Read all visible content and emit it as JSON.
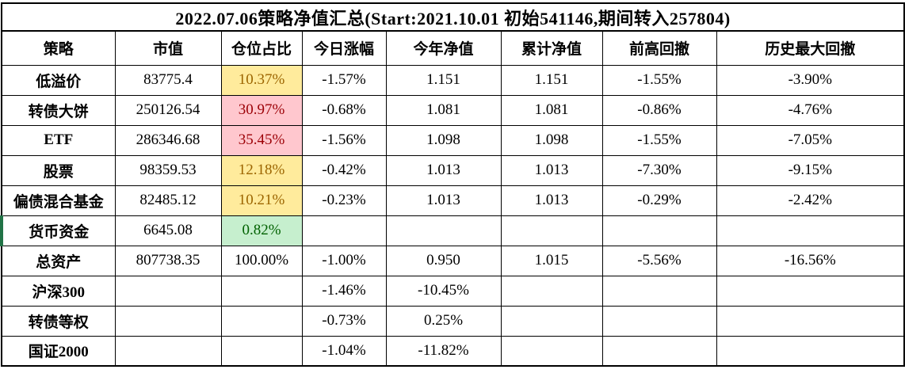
{
  "title": "2022.07.06策略净值汇总(Start:2021.10.01 初始541146,期间转入257804)",
  "colors": {
    "neutral_bg": "#FFEB9C",
    "neutral_text": "#9C6500",
    "bad_bg": "#FFC7CE",
    "bad_text": "#9C0006",
    "good_bg": "#C6EFCE",
    "good_text": "#006100",
    "selection_edge_green": "#217346",
    "grid_line": "#000000"
  },
  "table": {
    "headers": [
      "策略",
      "市值",
      "仓位占比",
      "今日涨幅",
      "今年净值",
      "累计净值",
      "前高回撤",
      "历史最大回撤"
    ],
    "rows": [
      {
        "label": "低溢价",
        "market_value": "83775.4",
        "position": "10.37%",
        "position_style": "neutral",
        "today_change": "-1.57%",
        "ytd_nav": "1.151",
        "cum_nav": "1.151",
        "drawdown_prev_high": "-1.55%",
        "max_drawdown_hist": "-3.90%",
        "green_left": false
      },
      {
        "label": "转债大饼",
        "market_value": "250126.54",
        "position": "30.97%",
        "position_style": "bad",
        "today_change": "-0.68%",
        "ytd_nav": "1.081",
        "cum_nav": "1.081",
        "drawdown_prev_high": "-0.86%",
        "max_drawdown_hist": "-4.76%",
        "green_left": false
      },
      {
        "label": "ETF",
        "market_value": "286346.68",
        "position": "35.45%",
        "position_style": "bad",
        "today_change": "-1.56%",
        "ytd_nav": "1.098",
        "cum_nav": "1.098",
        "drawdown_prev_high": "-1.55%",
        "max_drawdown_hist": "-7.05%",
        "green_left": false
      },
      {
        "label": "股票",
        "market_value": "98359.53",
        "position": "12.18%",
        "position_style": "neutral",
        "today_change": "-0.42%",
        "ytd_nav": "1.013",
        "cum_nav": "1.013",
        "drawdown_prev_high": "-7.30%",
        "max_drawdown_hist": "-9.15%",
        "green_left": false
      },
      {
        "label": "偏债混合基金",
        "market_value": "82485.12",
        "position": "10.21%",
        "position_style": "neutral",
        "today_change": "-0.23%",
        "ytd_nav": "1.013",
        "cum_nav": "1.013",
        "drawdown_prev_high": "-0.29%",
        "max_drawdown_hist": "-2.42%",
        "green_left": false
      },
      {
        "label": "货币资金",
        "market_value": "6645.08",
        "position": "0.82%",
        "position_style": "good",
        "today_change": "",
        "ytd_nav": "",
        "cum_nav": "",
        "drawdown_prev_high": "",
        "max_drawdown_hist": "",
        "green_left": true
      },
      {
        "label": "总资产",
        "market_value": "807738.35",
        "position": "100.00%",
        "position_style": "",
        "today_change": "-1.00%",
        "ytd_nav": "0.950",
        "cum_nav": "1.015",
        "drawdown_prev_high": "-5.56%",
        "max_drawdown_hist": "-16.56%",
        "green_left": false
      },
      {
        "label": "沪深300",
        "market_value": "",
        "position": "",
        "position_style": "",
        "today_change": "-1.46%",
        "ytd_nav": "-10.45%",
        "cum_nav": "",
        "drawdown_prev_high": "",
        "max_drawdown_hist": "",
        "green_left": false
      },
      {
        "label": "转债等权",
        "market_value": "",
        "position": "",
        "position_style": "",
        "today_change": "-0.73%",
        "ytd_nav": "0.25%",
        "cum_nav": "",
        "drawdown_prev_high": "",
        "max_drawdown_hist": "",
        "green_left": false
      },
      {
        "label": "国证2000",
        "market_value": "",
        "position": "",
        "position_style": "",
        "today_change": "-1.04%",
        "ytd_nav": "-11.82%",
        "cum_nav": "",
        "drawdown_prev_high": "",
        "max_drawdown_hist": "",
        "green_left": false
      }
    ]
  }
}
